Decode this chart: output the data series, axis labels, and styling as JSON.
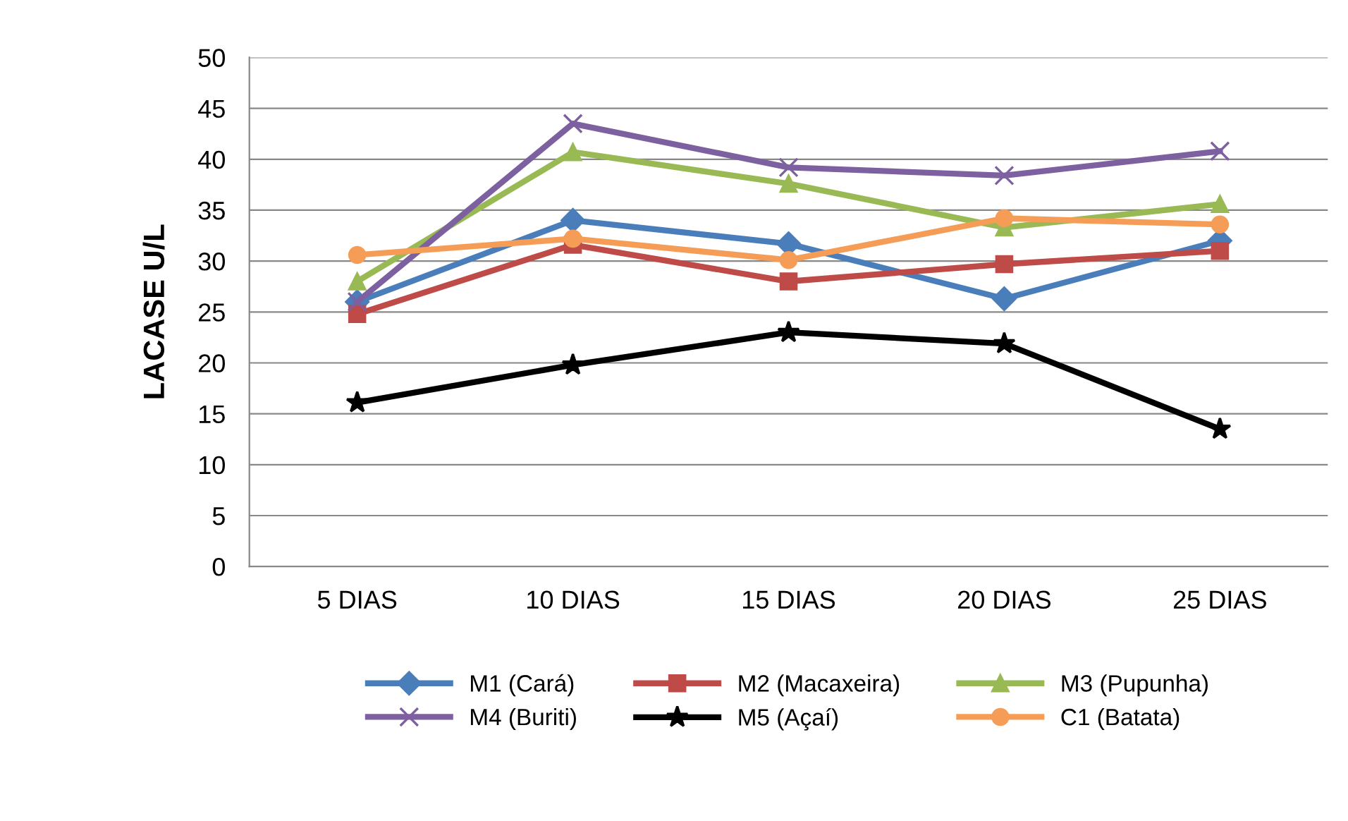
{
  "chart_data": {
    "type": "line",
    "ylabel": "LACASE U/L",
    "categories": [
      "5 DIAS",
      "10 DIAS",
      "15 DIAS",
      "20 DIAS",
      "25 DIAS"
    ],
    "ylim": [
      0,
      50
    ],
    "yticks": [
      0,
      5,
      10,
      15,
      20,
      25,
      30,
      35,
      40,
      45,
      50
    ],
    "grid": "y",
    "legend": "bottom",
    "series": [
      {
        "name": "M1 (Cará)",
        "color": "#4a7ebb",
        "marker": "diamond",
        "values": [
          26,
          34,
          31.7,
          26.3,
          32
        ]
      },
      {
        "name": "M2 (Macaxeira)",
        "color": "#be4b48",
        "marker": "square",
        "values": [
          24.8,
          31.6,
          28,
          29.7,
          31
        ]
      },
      {
        "name": "M3 (Pupunha)",
        "color": "#98b954",
        "marker": "triangle",
        "values": [
          28,
          40.7,
          37.6,
          33.3,
          35.6
        ]
      },
      {
        "name": "M4 (Buriti)",
        "color": "#7d60a0",
        "marker": "cross",
        "values": [
          26,
          43.5,
          39.2,
          38.4,
          40.8
        ]
      },
      {
        "name": "M5 (Açaí)",
        "color": "#000000",
        "marker": "star",
        "values": [
          16.1,
          19.8,
          23,
          21.9,
          13.5
        ]
      },
      {
        "name": "C1 (Batata)",
        "color": "#f59d56",
        "marker": "circle",
        "values": [
          30.6,
          32.2,
          30.1,
          34.2,
          33.6
        ]
      }
    ]
  }
}
